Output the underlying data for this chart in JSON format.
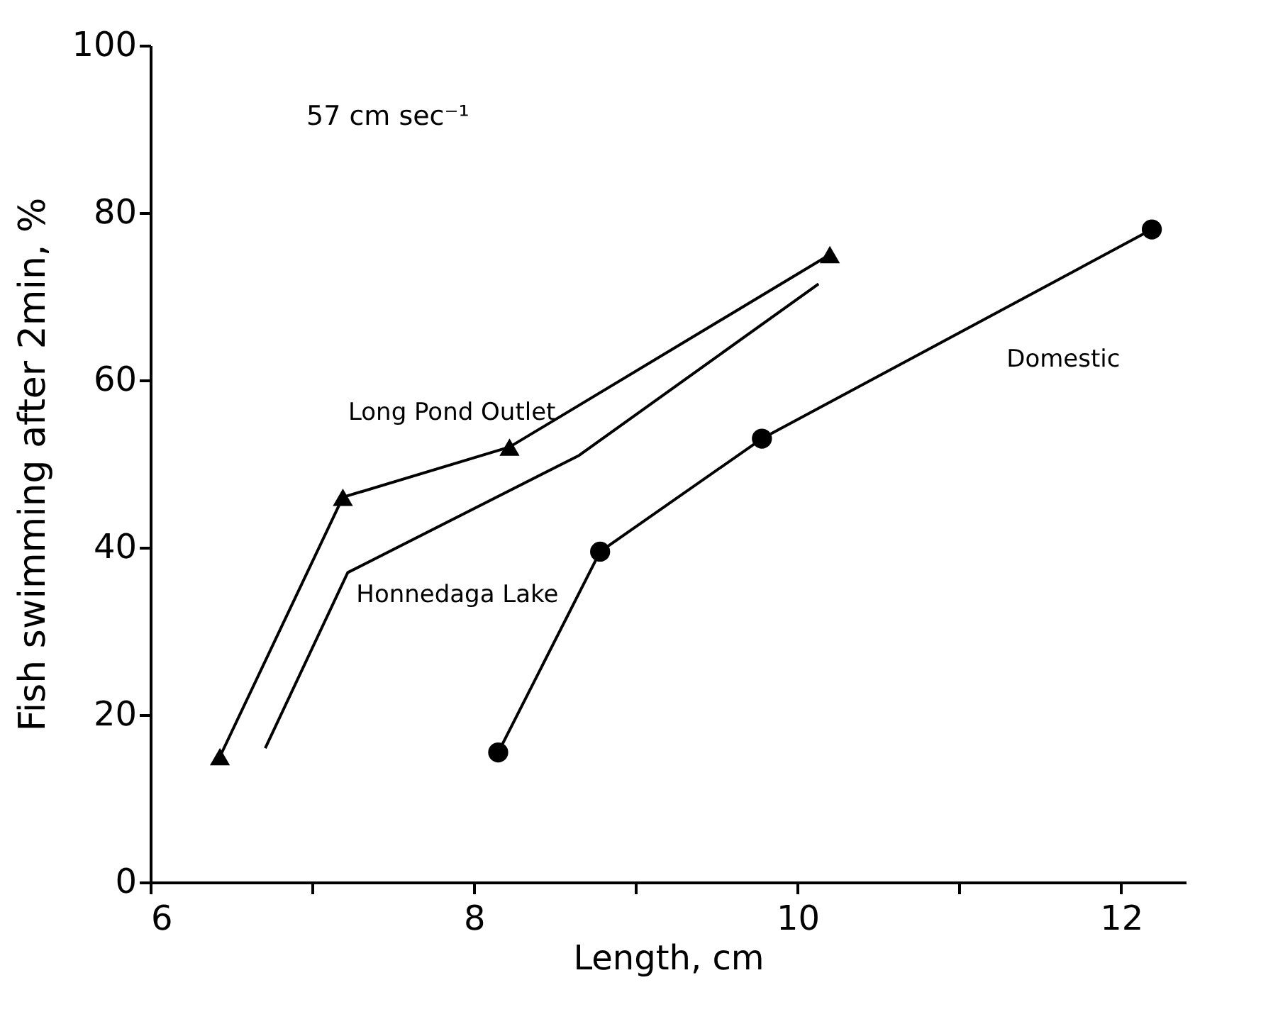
{
  "chart_data": {
    "type": "line",
    "xlabel": "Length, cm",
    "ylabel": "Fish swimming after 2min, %",
    "annotations": [
      "57 cm sec⁻¹"
    ],
    "series": [
      {
        "name": "Long Pond Outlet",
        "color": "#000000",
        "marker": "triangle",
        "x": [
          6.43,
          7.19,
          8.22,
          10.2
        ],
        "values": [
          15,
          46,
          52,
          75
        ]
      },
      {
        "name": "Honnedaga Lake",
        "color": "#000000",
        "marker": "none",
        "x": [
          6.71,
          7.22,
          8.65,
          10.13
        ],
        "values": [
          16,
          37,
          51,
          71.5
        ]
      },
      {
        "name": "Domestic",
        "color": "#000000",
        "marker": "circle",
        "x": [
          8.15,
          8.78,
          9.78,
          12.19
        ],
        "values": [
          15.5,
          39.5,
          53,
          78
        ]
      }
    ],
    "xlim": [
      6,
      12.4
    ],
    "xticks": [
      6,
      {
        "value": 7,
        "label": null
      },
      8,
      {
        "value": 9,
        "label": null
      },
      10,
      {
        "value": 11,
        "label": null
      },
      12
    ],
    "ylim": [
      0,
      100
    ],
    "yticks": [
      0,
      20,
      40,
      60,
      80,
      100
    ],
    "grid": false,
    "legend": false,
    "line_style": "solid"
  }
}
